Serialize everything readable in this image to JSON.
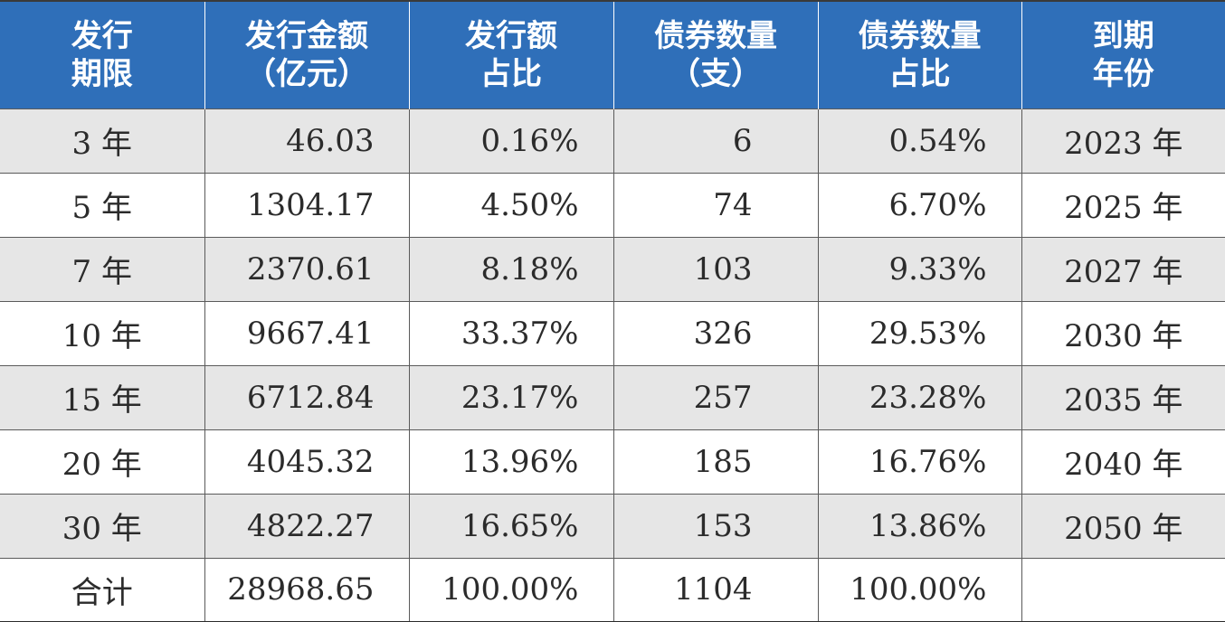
{
  "table": {
    "headers": [
      [
        "发行",
        "期限"
      ],
      [
        "发行金额",
        "（亿元）"
      ],
      [
        "发行额",
        "占比"
      ],
      [
        "债券数量",
        "（支）"
      ],
      [
        "债券数量",
        "占比"
      ],
      [
        "到期",
        "年份"
      ]
    ],
    "rows": [
      [
        "3 年",
        "46.03",
        "0.16%",
        "6",
        "0.54%",
        "2023 年"
      ],
      [
        "5 年",
        "1304.17",
        "4.50%",
        "74",
        "6.70%",
        "2025 年"
      ],
      [
        "7 年",
        "2370.61",
        "8.18%",
        "103",
        "9.33%",
        "2027 年"
      ],
      [
        "10 年",
        "9667.41",
        "33.37%",
        "326",
        "29.53%",
        "2030 年"
      ],
      [
        "15 年",
        "6712.84",
        "23.17%",
        "257",
        "23.28%",
        "2035 年"
      ],
      [
        "20 年",
        "4045.32",
        "13.96%",
        "185",
        "16.76%",
        "2040 年"
      ],
      [
        "30 年",
        "4822.27",
        "16.65%",
        "153",
        "13.86%",
        "2050 年"
      ],
      [
        "合计",
        "28968.65",
        "100.00%",
        "1104",
        "100.00%",
        ""
      ]
    ]
  },
  "colors": {
    "header_bg": "#2f6fb9",
    "header_text": "#ffffff",
    "stripe_bg": "#e6e6e6"
  }
}
